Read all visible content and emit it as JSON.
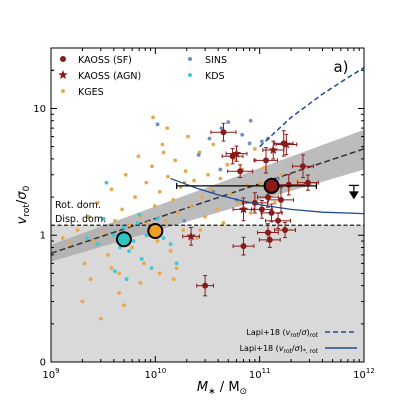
{
  "chart_data": {
    "type": "scatter",
    "panel_label": "a)",
    "xlabel": "M_* / M_⊙",
    "ylabel": "v_rot/σ_0",
    "xscale": "log",
    "yscale": "log",
    "xlim": [
      1000000000.0,
      1000000000000.0
    ],
    "ylim": [
      0.1,
      30
    ],
    "xticks": [
      {
        "value": 1000000000.0,
        "base": "10",
        "exp": "9"
      },
      {
        "value": 10000000000.0,
        "base": "10",
        "exp": "10"
      },
      {
        "value": 100000000000.0,
        "base": "10",
        "exp": "11"
      },
      {
        "value": 1000000000000.0,
        "base": "10",
        "exp": "12"
      }
    ],
    "yticks": [
      {
        "value": 1,
        "label": "1"
      },
      {
        "value": 10,
        "label": "10"
      }
    ],
    "region_labels": {
      "upper": "Rot. dom.",
      "lower": "Disp. dom."
    },
    "threshold_value": 1.2,
    "colors": {
      "kaoss": "#8b1a1a",
      "sins": "#6f8fbf",
      "kges": "#e8a94e",
      "kds": "#3fc8d6",
      "lapi_rot": "#1f4e8c",
      "lapi_star": "#1f4e8c",
      "band": "#a6a6a6",
      "shade": "#d9d9d9",
      "cyan_big": "#2ec4c4",
      "orange_big": "#f0a020"
    },
    "legend": [
      {
        "label": "KAOSS (SF)",
        "marker": "circle",
        "color": "#8b1a1a"
      },
      {
        "label": "KAOSS (AGN)",
        "marker": "star",
        "color": "#8b1a1a"
      },
      {
        "label": "KGES",
        "marker": "dot",
        "color": "#e8a94e"
      },
      {
        "label": "SINS",
        "marker": "dot",
        "color": "#6f8fbf"
      },
      {
        "label": "KDS",
        "marker": "dot",
        "color": "#3fc8d6"
      }
    ],
    "lines_legend": [
      {
        "label": "Lapi+18 (v_rot/σ)_rot",
        "style": "dashed"
      },
      {
        "label": "Lapi+18 (v_rot/σ)_*, rot",
        "style": "solid"
      }
    ],
    "series": [
      {
        "name": "KAOSS (SF)",
        "points": [
          [
            45000000000.0,
            6.5
          ],
          [
            55000000000.0,
            4.2
          ],
          [
            65000000000.0,
            3.2
          ],
          [
            115000000000.0,
            3.9
          ],
          [
            170000000000.0,
            5.3
          ],
          [
            190000000000.0,
            2.5
          ],
          [
            260000000000.0,
            3.5
          ],
          [
            160000000000.0,
            1.9
          ],
          [
            120000000000.0,
            2.0
          ],
          [
            105000000000.0,
            1.6
          ],
          [
            130000000000.0,
            1.5
          ],
          [
            150000000000.0,
            1.3
          ],
          [
            175000000000.0,
            1.1
          ],
          [
            120000000000.0,
            1.05
          ],
          [
            125000000000.0,
            0.92
          ],
          [
            90000000000.0,
            1.8
          ],
          [
            70000000000.0,
            0.82
          ],
          [
            30000000000.0,
            0.4
          ],
          [
            290000000000.0,
            2.6
          ]
        ],
        "errors_x": [
          0.12,
          0.1,
          0.12,
          0.11,
          0.09,
          0.15,
          0.1,
          0.12,
          0.1,
          0.1,
          0.1,
          0.12,
          0.1,
          0.1,
          0.1,
          0.12,
          0.1,
          0.08,
          0.1
        ],
        "errors_y": [
          0.07,
          0.06,
          0.05,
          0.1,
          0.1,
          0.08,
          0.09,
          0.1,
          0.08,
          0.07,
          0.07,
          0.06,
          0.06,
          0.07,
          0.06,
          0.08,
          0.07,
          0.08,
          0.06
        ]
      },
      {
        "name": "KAOSS (AGN)",
        "points": [
          [
            60000000000.0,
            4.4
          ],
          [
            180000000000.0,
            5.2
          ],
          [
            135000000000.0,
            4.7
          ],
          [
            70000000000.0,
            1.6
          ],
          [
            22000000000.0,
            0.98
          ]
        ],
        "errors_x": [
          0.1,
          0.1,
          0.1,
          0.1,
          0.08
        ],
        "errors_y": [
          0.06,
          0.08,
          0.07,
          0.09,
          0.07
        ]
      },
      {
        "name": "KGES",
        "points": [
          [
            1300000000.0,
            0.95
          ],
          [
            1500000000.0,
            0.85
          ],
          [
            1800000000.0,
            1.1
          ],
          [
            2100000000.0,
            0.6
          ],
          [
            2300000000.0,
            1.4
          ],
          [
            2600000000.0,
            0.9
          ],
          [
            2800000000.0,
            1.8
          ],
          [
            3200000000.0,
            1.05
          ],
          [
            3500000000.0,
            0.7
          ],
          [
            3800000000.0,
            2.3
          ],
          [
            4100000000.0,
            1.3
          ],
          [
            4500000000.0,
            0.5
          ],
          [
            4800000000.0,
            1.6
          ],
          [
            5200000000.0,
            3.0
          ],
          [
            5600000000.0,
            1.2
          ],
          [
            6000000000.0,
            0.8
          ],
          [
            6400000000.0,
            2.0
          ],
          [
            6900000000.0,
            4.2
          ],
          [
            7300000000.0,
            1.4
          ],
          [
            7800000000.0,
            0.6
          ],
          [
            8200000000.0,
            2.6
          ],
          [
            8800000000.0,
            1.0
          ],
          [
            9300000000.0,
            3.5
          ],
          [
            9900000000.0,
            1.7
          ],
          [
            10500000000.0,
            0.9
          ],
          [
            11000000000.0,
            2.2
          ],
          [
            11700000000.0,
            5.2
          ],
          [
            12500000000.0,
            1.3
          ],
          [
            13200000000.0,
            2.9
          ],
          [
            14000000000.0,
            0.75
          ],
          [
            14800000000.0,
            1.9
          ],
          [
            15500000000.0,
            3.9
          ],
          [
            16500000000.0,
            1.5
          ],
          [
            17500000000.0,
            2.4
          ],
          [
            18500000000.0,
            1.1
          ],
          [
            19500000000.0,
            3.2
          ],
          [
            20500000000.0,
            6.0
          ],
          [
            22000000000.0,
            1.7
          ],
          [
            23500000000.0,
            2.7
          ],
          [
            25000000000.0,
            0.95
          ],
          [
            26500000000.0,
            4.5
          ],
          [
            28000000000.0,
            2.0
          ],
          [
            30000000000.0,
            1.4
          ],
          [
            32000000000.0,
            3.0
          ],
          [
            34000000000.0,
            2.3
          ],
          [
            36000000000.0,
            5.2
          ],
          [
            39000000000.0,
            1.6
          ],
          [
            42000000000.0,
            2.8
          ],
          [
            45000000000.0,
            1.25
          ],
          [
            49000000000.0,
            3.6
          ],
          [
            53000000000.0,
            2.1
          ],
          [
            58000000000.0,
            4.0
          ],
          [
            63000000000.0,
            1.8
          ],
          [
            68000000000.0,
            3.3
          ],
          [
            75000000000.0,
            2.5
          ],
          [
            82000000000.0,
            1.5
          ],
          [
            90000000000.0,
            4.8
          ],
          [
            100000000000.0,
            2.6
          ],
          [
            110000000000.0,
            3.4
          ],
          [
            125000000000.0,
            2.0
          ],
          [
            140000000000.0,
            1.8
          ],
          [
            160000000000.0,
            3.0
          ],
          [
            190000000000.0,
            2.3
          ],
          [
            230000000000.0,
            2.7
          ],
          [
            2000000000.0,
            0.3
          ],
          [
            3000000000.0,
            0.22
          ],
          [
            2400000000.0,
            0.45
          ],
          [
            4500000000.0,
            0.35
          ],
          [
            7200000000.0,
            0.42
          ],
          [
            3800000000.0,
            0.55
          ],
          [
            11000000000.0,
            0.5
          ],
          [
            15000000000.0,
            0.45
          ],
          [
            9500000000.0,
            8.5
          ],
          [
            13000000000.0,
            7.0
          ],
          [
            16000000000.0,
            0.55
          ],
          [
            5000000000.0,
            0.28
          ],
          [
            12000000000.0,
            4.5
          ],
          [
            19000000000.0,
            2.6
          ],
          [
            27000000000.0,
            1.1
          ],
          [
            8500000000.0,
            1.25
          ]
        ]
      },
      {
        "name": "SINS",
        "points": [
          [
            10500000000.0,
            7.5
          ],
          [
            33000000000.0,
            5.8
          ],
          [
            43000000000.0,
            7.0
          ],
          [
            68000000000.0,
            6.2
          ],
          [
            105000000000.0,
            5.5
          ],
          [
            80000000000.0,
            5.3
          ],
          [
            50000000000.0,
            7.8
          ],
          [
            120000000000.0,
            5.8
          ],
          [
            26000000000.0,
            4.3
          ],
          [
            90000000000.0,
            3.9
          ],
          [
            60000000000.0,
            1.9
          ],
          [
            36000000000.0,
            2.2
          ],
          [
            150000000000.0,
            2.8
          ],
          [
            19000000000.0,
            1.3
          ],
          [
            42000000000.0,
            3.3
          ],
          [
            82000000000.0,
            8.0
          ]
        ]
      },
      {
        "name": "KDS",
        "points": [
          [
            2200000000.0,
            0.95
          ],
          [
            3200000000.0,
            1.35
          ],
          [
            4000000000.0,
            1.0
          ],
          [
            4600000000.0,
            0.8
          ],
          [
            5000000000.0,
            1.15
          ],
          [
            5600000000.0,
            0.75
          ],
          [
            6200000000.0,
            0.9
          ],
          [
            6800000000.0,
            1.25
          ],
          [
            7400000000.0,
            0.65
          ],
          [
            8200000000.0,
            1.0
          ],
          [
            9200000000.0,
            0.55
          ],
          [
            10500000000.0,
            1.35
          ],
          [
            12000000000.0,
            0.95
          ],
          [
            14000000000.0,
            0.85
          ],
          [
            16000000000.0,
            0.6
          ],
          [
            4100000000.0,
            0.52
          ],
          [
            5300000000.0,
            0.45
          ],
          [
            3400000000.0,
            2.6
          ],
          [
            2800000000.0,
            0.85
          ],
          [
            7000000000.0,
            1.45
          ]
        ]
      }
    ],
    "large_markers": [
      {
        "name": "KDS median",
        "x": 5000000000.0,
        "y": 0.93,
        "color": "#2ec4c4"
      },
      {
        "name": "KGES median",
        "x": 10000000000.0,
        "y": 1.08,
        "color": "#f0a020"
      },
      {
        "name": "KAOSS median",
        "x": 130000000000.0,
        "y": 2.45,
        "color": "#8b1a1a",
        "x_range": [
          16000000000.0,
          350000000000.0
        ],
        "y_err": [
          0.3,
          0.35
        ]
      }
    ],
    "upper_limit": {
      "x": 800000000000.0,
      "y": 2.3
    },
    "fit_line": {
      "x": [
        1000000000.0,
        1000000000000.0
      ],
      "y": [
        0.72,
        4.8
      ]
    },
    "fit_band": {
      "x": [
        1000000000.0,
        1000000000000.0
      ],
      "y_low": [
        0.62,
        3.3
      ],
      "y_high": [
        0.84,
        6.8
      ]
    },
    "lapi_rot": {
      "x": [
        100000000000.0,
        200000000000.0,
        400000000000.0,
        700000000000.0,
        1000000000000.0
      ],
      "y": [
        5.0,
        8.5,
        13.0,
        17.5,
        21.0
      ]
    },
    "lapi_star_rot": {
      "x": [
        14000000000.0,
        25000000000.0,
        40000000000.0,
        70000000000.0,
        100000000000.0,
        200000000000.0,
        400000000000.0,
        1000000000000.0
      ],
      "y": [
        2.8,
        2.35,
        2.08,
        1.86,
        1.74,
        1.6,
        1.52,
        1.48
      ]
    }
  }
}
